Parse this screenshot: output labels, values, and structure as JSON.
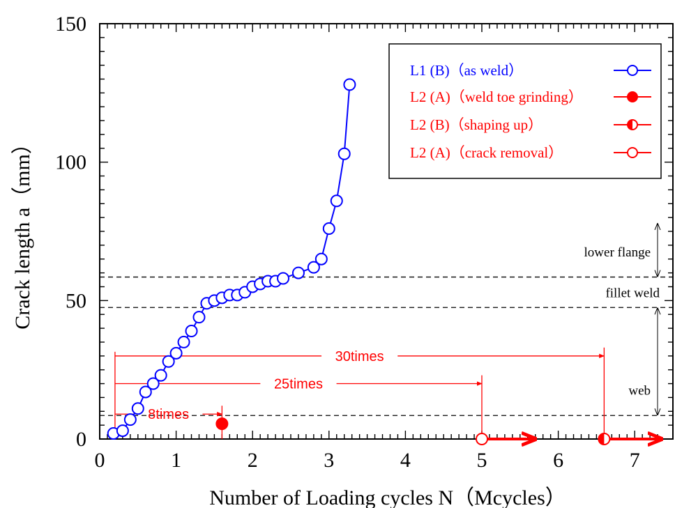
{
  "colors": {
    "blue": "#0000ff",
    "red": "#ff0000",
    "black": "#000000"
  },
  "chart_data": {
    "type": "scatter",
    "xlabel": "Number of Loading cycles N（Mcycles）",
    "ylabel": "Crack length a（mm）",
    "xlim": [
      0,
      7.4
    ],
    "ylim": [
      0,
      150
    ],
    "xticks": [
      "0",
      "1",
      "2",
      "3",
      "4",
      "5",
      "6",
      "7"
    ],
    "yticks": [
      "0",
      "50",
      "100",
      "150"
    ],
    "legend_position": "top-right",
    "series": [
      {
        "name": "L1 (B)（as weld）",
        "color": "#0000ff",
        "marker": "open-circle",
        "line": true,
        "x": [
          0.18,
          0.3,
          0.4,
          0.5,
          0.6,
          0.7,
          0.8,
          0.9,
          1.0,
          1.1,
          1.2,
          1.3,
          1.4,
          1.5,
          1.6,
          1.7,
          1.8,
          1.9,
          2.0,
          2.1,
          2.2,
          2.3,
          2.4,
          2.6,
          2.8,
          2.9,
          3.0,
          3.1,
          3.2,
          3.27
        ],
        "y": [
          2,
          3,
          7,
          11,
          17,
          20,
          23,
          28,
          31,
          35,
          39,
          44,
          49,
          50,
          51,
          52,
          52,
          53,
          55,
          56,
          57,
          57,
          58,
          60,
          62,
          65,
          76,
          86,
          103,
          128
        ]
      },
      {
        "name": "L2 (A)（weld toe grinding）",
        "color": "#ff0000",
        "marker": "filled-circle",
        "x": [
          1.6
        ],
        "y": [
          5.5
        ]
      },
      {
        "name": "L2 (B)（shaping up）",
        "color": "#ff0000",
        "marker": "half-circle",
        "x": [
          6.6
        ],
        "y": [
          0
        ]
      },
      {
        "name": "L2 (A)（crack removal）",
        "color": "#ff0000",
        "marker": "open-circle",
        "x": [
          5.0
        ],
        "y": [
          0
        ]
      }
    ],
    "hlines": [
      8.5,
      47.5,
      58.5
    ],
    "regions": [
      {
        "label": "lower flange",
        "from": 58.5,
        "to": 78
      },
      {
        "label": "fillet weld",
        "from": 47.5,
        "to": 58.5
      },
      {
        "label": "web",
        "from": 8.5,
        "to": 47.5
      }
    ],
    "annotations": [
      {
        "label": "8times",
        "x_from": 0.2,
        "x_to": 1.6,
        "y": 9
      },
      {
        "label": "25times",
        "x_from": 0.2,
        "x_to": 5.0,
        "y": 20
      },
      {
        "label": "30times",
        "x_from": 0.2,
        "x_to": 6.6,
        "y": 30
      }
    ],
    "runout_arrows": [
      {
        "x_from": 5.0,
        "x_to": 5.7,
        "y": 0
      },
      {
        "x_from": 6.6,
        "x_to": 7.35,
        "y": 0
      }
    ]
  }
}
